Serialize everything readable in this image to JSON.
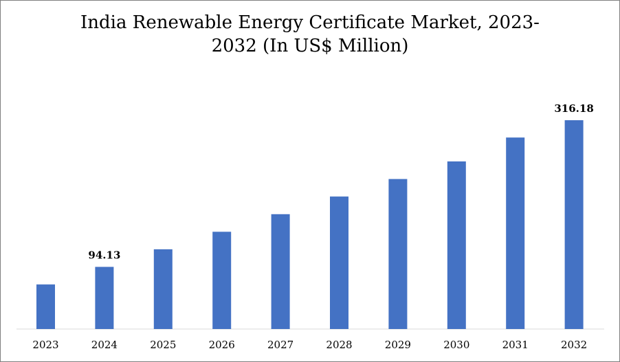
{
  "chart_data": {
    "type": "bar",
    "title_lines": [
      "India Renewable Energy Certificate Market, 2023-",
      "2032 (In US$ Million)"
    ],
    "categories": [
      "2023",
      "2024",
      "2025",
      "2026",
      "2027",
      "2028",
      "2029",
      "2030",
      "2031",
      "2032"
    ],
    "values": [
      67.5,
      94.13,
      120.7,
      147.3,
      173.9,
      200.6,
      227.2,
      253.8,
      290.0,
      316.18
    ],
    "data_labels": [
      {
        "index": 1,
        "text": "94.13"
      },
      {
        "index": 9,
        "text": "316.18"
      }
    ],
    "xlabel": "",
    "ylabel": "",
    "ylim": [
      0,
      330
    ],
    "grid": false,
    "legend": "none",
    "bar_color": "#4472C4"
  }
}
